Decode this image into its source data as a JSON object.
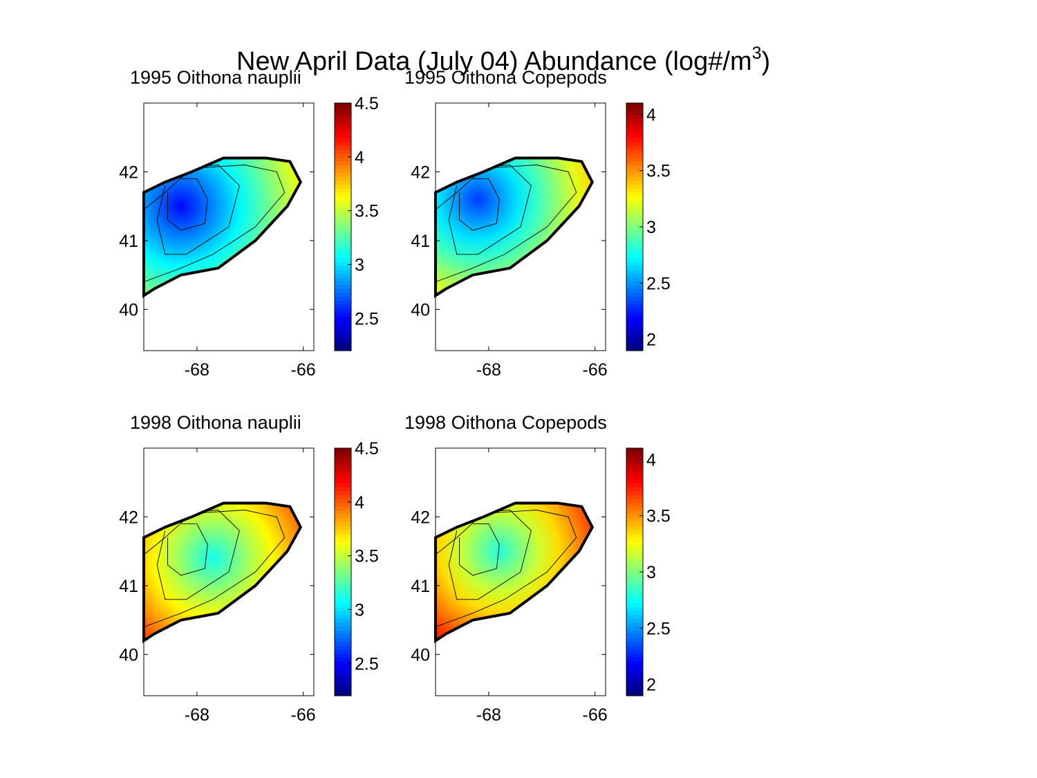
{
  "figure": {
    "title_main": "New April Data (July 04) Abundance (log#/m",
    "title_sup": "3",
    "title_close": ")"
  },
  "chart_data": [
    {
      "type": "heatmap",
      "title": "1995 Oithona nauplii",
      "xlim": [
        -69,
        -65.8
      ],
      "ylim": [
        39.4,
        43
      ],
      "xticks": [
        -68,
        -66
      ],
      "yticks": [
        40,
        41,
        42
      ],
      "colorbar": {
        "min": 2.2,
        "max": 4.5,
        "ticks": [
          2.5,
          3,
          3.5,
          4,
          4.5
        ],
        "colormap": "jet"
      },
      "field": {
        "low": 2.5,
        "high": 3.6,
        "low_center": [
          -68.3,
          41.5
        ],
        "description": "low in central basin, higher toward east"
      },
      "contour_depths": [
        "inner contour",
        "middle contour",
        "outer contour"
      ]
    },
    {
      "type": "heatmap",
      "title": "1995 Oithona Copepods",
      "xlim": [
        -69,
        -65.8
      ],
      "ylim": [
        39.4,
        43
      ],
      "xticks": [
        -68,
        -66
      ],
      "yticks": [
        40,
        41,
        42
      ],
      "colorbar": {
        "min": 1.9,
        "max": 4.1,
        "ticks": [
          2,
          2.5,
          3,
          3.5,
          4
        ],
        "colormap": "jet"
      },
      "field": {
        "low": 2.3,
        "high": 3.4,
        "low_center": [
          -68.2,
          41.6
        ]
      },
      "contour_depths": [
        "inner contour",
        "middle contour",
        "outer contour"
      ]
    },
    {
      "type": "heatmap",
      "title": "1998 Oithona nauplii",
      "xlim": [
        -69,
        -65.8
      ],
      "ylim": [
        39.4,
        43
      ],
      "xticks": [
        -68,
        -66
      ],
      "yticks": [
        40,
        41,
        42
      ],
      "colorbar": {
        "min": 2.2,
        "max": 4.5,
        "ticks": [
          2.5,
          3,
          3.5,
          4,
          4.5
        ],
        "colormap": "jet"
      },
      "field": {
        "low": 3.1,
        "high": 4.2,
        "low_center": [
          -67.7,
          41.4
        ]
      },
      "contour_depths": [
        "inner contour",
        "middle contour",
        "outer contour"
      ]
    },
    {
      "type": "heatmap",
      "title": "1998 Oithona Copepods",
      "xlim": [
        -69,
        -65.8
      ],
      "ylim": [
        39.4,
        43
      ],
      "xticks": [
        -68,
        -66
      ],
      "yticks": [
        40,
        41,
        42
      ],
      "colorbar": {
        "min": 1.9,
        "max": 4.1,
        "ticks": [
          2,
          2.5,
          3,
          3.5,
          4
        ],
        "colormap": "jet"
      },
      "field": {
        "low": 2.8,
        "high": 3.9,
        "low_center": [
          -67.8,
          41.5
        ]
      },
      "contour_depths": [
        "inner contour",
        "middle contour",
        "outer contour"
      ]
    }
  ],
  "region_outline": {
    "lon": [
      -69,
      -68.6,
      -68.1,
      -67.5,
      -66.7,
      -66.25,
      -66.05,
      -66.3,
      -66.9,
      -67.6,
      -68.3,
      -68.8,
      -69,
      -69
    ],
    "lat": [
      41.7,
      41.85,
      42.0,
      42.2,
      42.2,
      42.15,
      41.85,
      41.5,
      41.0,
      40.6,
      40.5,
      40.3,
      40.2,
      41.7
    ]
  }
}
